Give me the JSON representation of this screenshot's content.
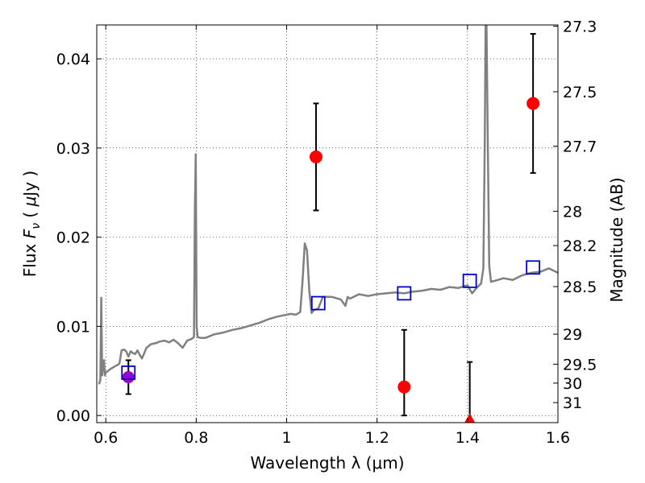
{
  "chart_data": {
    "type": "scatter",
    "xlabel": "Wavelength  λ (μm)",
    "ylabel": "Flux  F_ν  ( μJy )",
    "ylabel_parts": {
      "pre": "Flux ",
      "var": "F",
      "sub": "ν",
      "mid": "  ( ",
      "mu": "μ",
      "post": "Jy )"
    },
    "y2label": "Magnitude (AB)",
    "xlim": [
      0.58,
      1.6
    ],
    "ylim": [
      -0.0008,
      0.0438
    ],
    "x_ticks": [
      0.6,
      0.8,
      1.0,
      1.2,
      1.4,
      1.6
    ],
    "x_tick_labels": [
      "0.6",
      "0.8",
      "1",
      "1.2",
      "1.4",
      "1.6"
    ],
    "y_ticks": [
      0.0,
      0.01,
      0.02,
      0.03,
      0.04
    ],
    "y_tick_labels": [
      "0.00",
      "0.01",
      "0.02",
      "0.03",
      "0.04"
    ],
    "mag_ticks": [
      27.3,
      27.5,
      27.7,
      28,
      28.2,
      28.5,
      29,
      29.5,
      30,
      31
    ],
    "mag_tick_labels": [
      "27.3",
      "27.5",
      "27.7",
      "28",
      "28.2",
      "28.5",
      "29",
      "29.5",
      "30",
      "31"
    ],
    "grid": true,
    "colors": {
      "model": "#808080",
      "observed": "#ff0000",
      "model_photometry": "#0000cc",
      "optical": "#9900cc",
      "errorbar": "#000000"
    },
    "model_spectrum": {
      "x": [
        0.585,
        0.588,
        0.59,
        0.592,
        0.594,
        0.596,
        0.598,
        0.6,
        0.61,
        0.62,
        0.63,
        0.635,
        0.64,
        0.645,
        0.65,
        0.655,
        0.66,
        0.665,
        0.67,
        0.675,
        0.68,
        0.69,
        0.7,
        0.71,
        0.72,
        0.73,
        0.74,
        0.75,
        0.76,
        0.77,
        0.78,
        0.79,
        0.795,
        0.797,
        0.799,
        0.801,
        0.803,
        0.81,
        0.82,
        0.83,
        0.84,
        0.86,
        0.88,
        0.9,
        0.92,
        0.94,
        0.96,
        0.98,
        1.0,
        1.01,
        1.02,
        1.03,
        1.035,
        1.04,
        1.045,
        1.05,
        1.055,
        1.06,
        1.07,
        1.08,
        1.1,
        1.12,
        1.13,
        1.135,
        1.14,
        1.16,
        1.18,
        1.2,
        1.22,
        1.24,
        1.26,
        1.28,
        1.3,
        1.32,
        1.34,
        1.36,
        1.38,
        1.4,
        1.41,
        1.42,
        1.43,
        1.435,
        1.438,
        1.44,
        1.442,
        1.445,
        1.448,
        1.452,
        1.46,
        1.48,
        1.5,
        1.52,
        1.54,
        1.56,
        1.58,
        1.6
      ],
      "y": [
        0.0035,
        0.004,
        0.0132,
        0.0045,
        0.0058,
        0.0062,
        0.0045,
        0.0048,
        0.0052,
        0.0055,
        0.0058,
        0.0073,
        0.0074,
        0.0072,
        0.0066,
        0.0072,
        0.007,
        0.0069,
        0.0073,
        0.0068,
        0.0064,
        0.0076,
        0.008,
        0.0081,
        0.0083,
        0.0084,
        0.0082,
        0.0085,
        0.0081,
        0.0076,
        0.0084,
        0.0086,
        0.0088,
        0.023,
        0.0293,
        0.01,
        0.0088,
        0.0087,
        0.0087,
        0.0089,
        0.0091,
        0.0093,
        0.0096,
        0.0098,
        0.0101,
        0.0104,
        0.0108,
        0.0111,
        0.0113,
        0.0114,
        0.0113,
        0.0116,
        0.015,
        0.0193,
        0.0185,
        0.014,
        0.0115,
        0.0118,
        0.012,
        0.0133,
        0.0133,
        0.013,
        0.0123,
        0.0133,
        0.0131,
        0.0136,
        0.0134,
        0.0136,
        0.0137,
        0.0138,
        0.0137,
        0.0139,
        0.014,
        0.0142,
        0.0141,
        0.0144,
        0.0143,
        0.0146,
        0.0137,
        0.0143,
        0.0148,
        0.0165,
        0.03,
        0.0438,
        0.0438,
        0.03,
        0.0168,
        0.015,
        0.0151,
        0.0154,
        0.0152,
        0.0157,
        0.016,
        0.0161,
        0.0165,
        0.016
      ]
    },
    "observed_points": [
      {
        "x": 1.065,
        "y": 0.029,
        "err_low": 0.006,
        "err_high": 0.006,
        "marker": "circle"
      },
      {
        "x": 1.26,
        "y": 0.0032,
        "err_low": 0.0032,
        "err_high": 0.0064,
        "marker": "circle"
      },
      {
        "x": 1.405,
        "y": -0.0005,
        "err_low": 0.0,
        "err_high": 0.0065,
        "marker": "triangle"
      },
      {
        "x": 1.545,
        "y": 0.035,
        "err_low": 0.0078,
        "err_high": 0.0078,
        "marker": "circle"
      }
    ],
    "optical_point": {
      "x": 0.65,
      "y": 0.0043,
      "err_low": 0.0019,
      "err_high": 0.0019,
      "marker": "circle"
    },
    "model_photometry": [
      {
        "x": 0.65,
        "y": 0.0048
      },
      {
        "x": 1.07,
        "y": 0.0126
      },
      {
        "x": 1.26,
        "y": 0.0137
      },
      {
        "x": 1.405,
        "y": 0.0151
      },
      {
        "x": 1.545,
        "y": 0.0166
      }
    ]
  }
}
